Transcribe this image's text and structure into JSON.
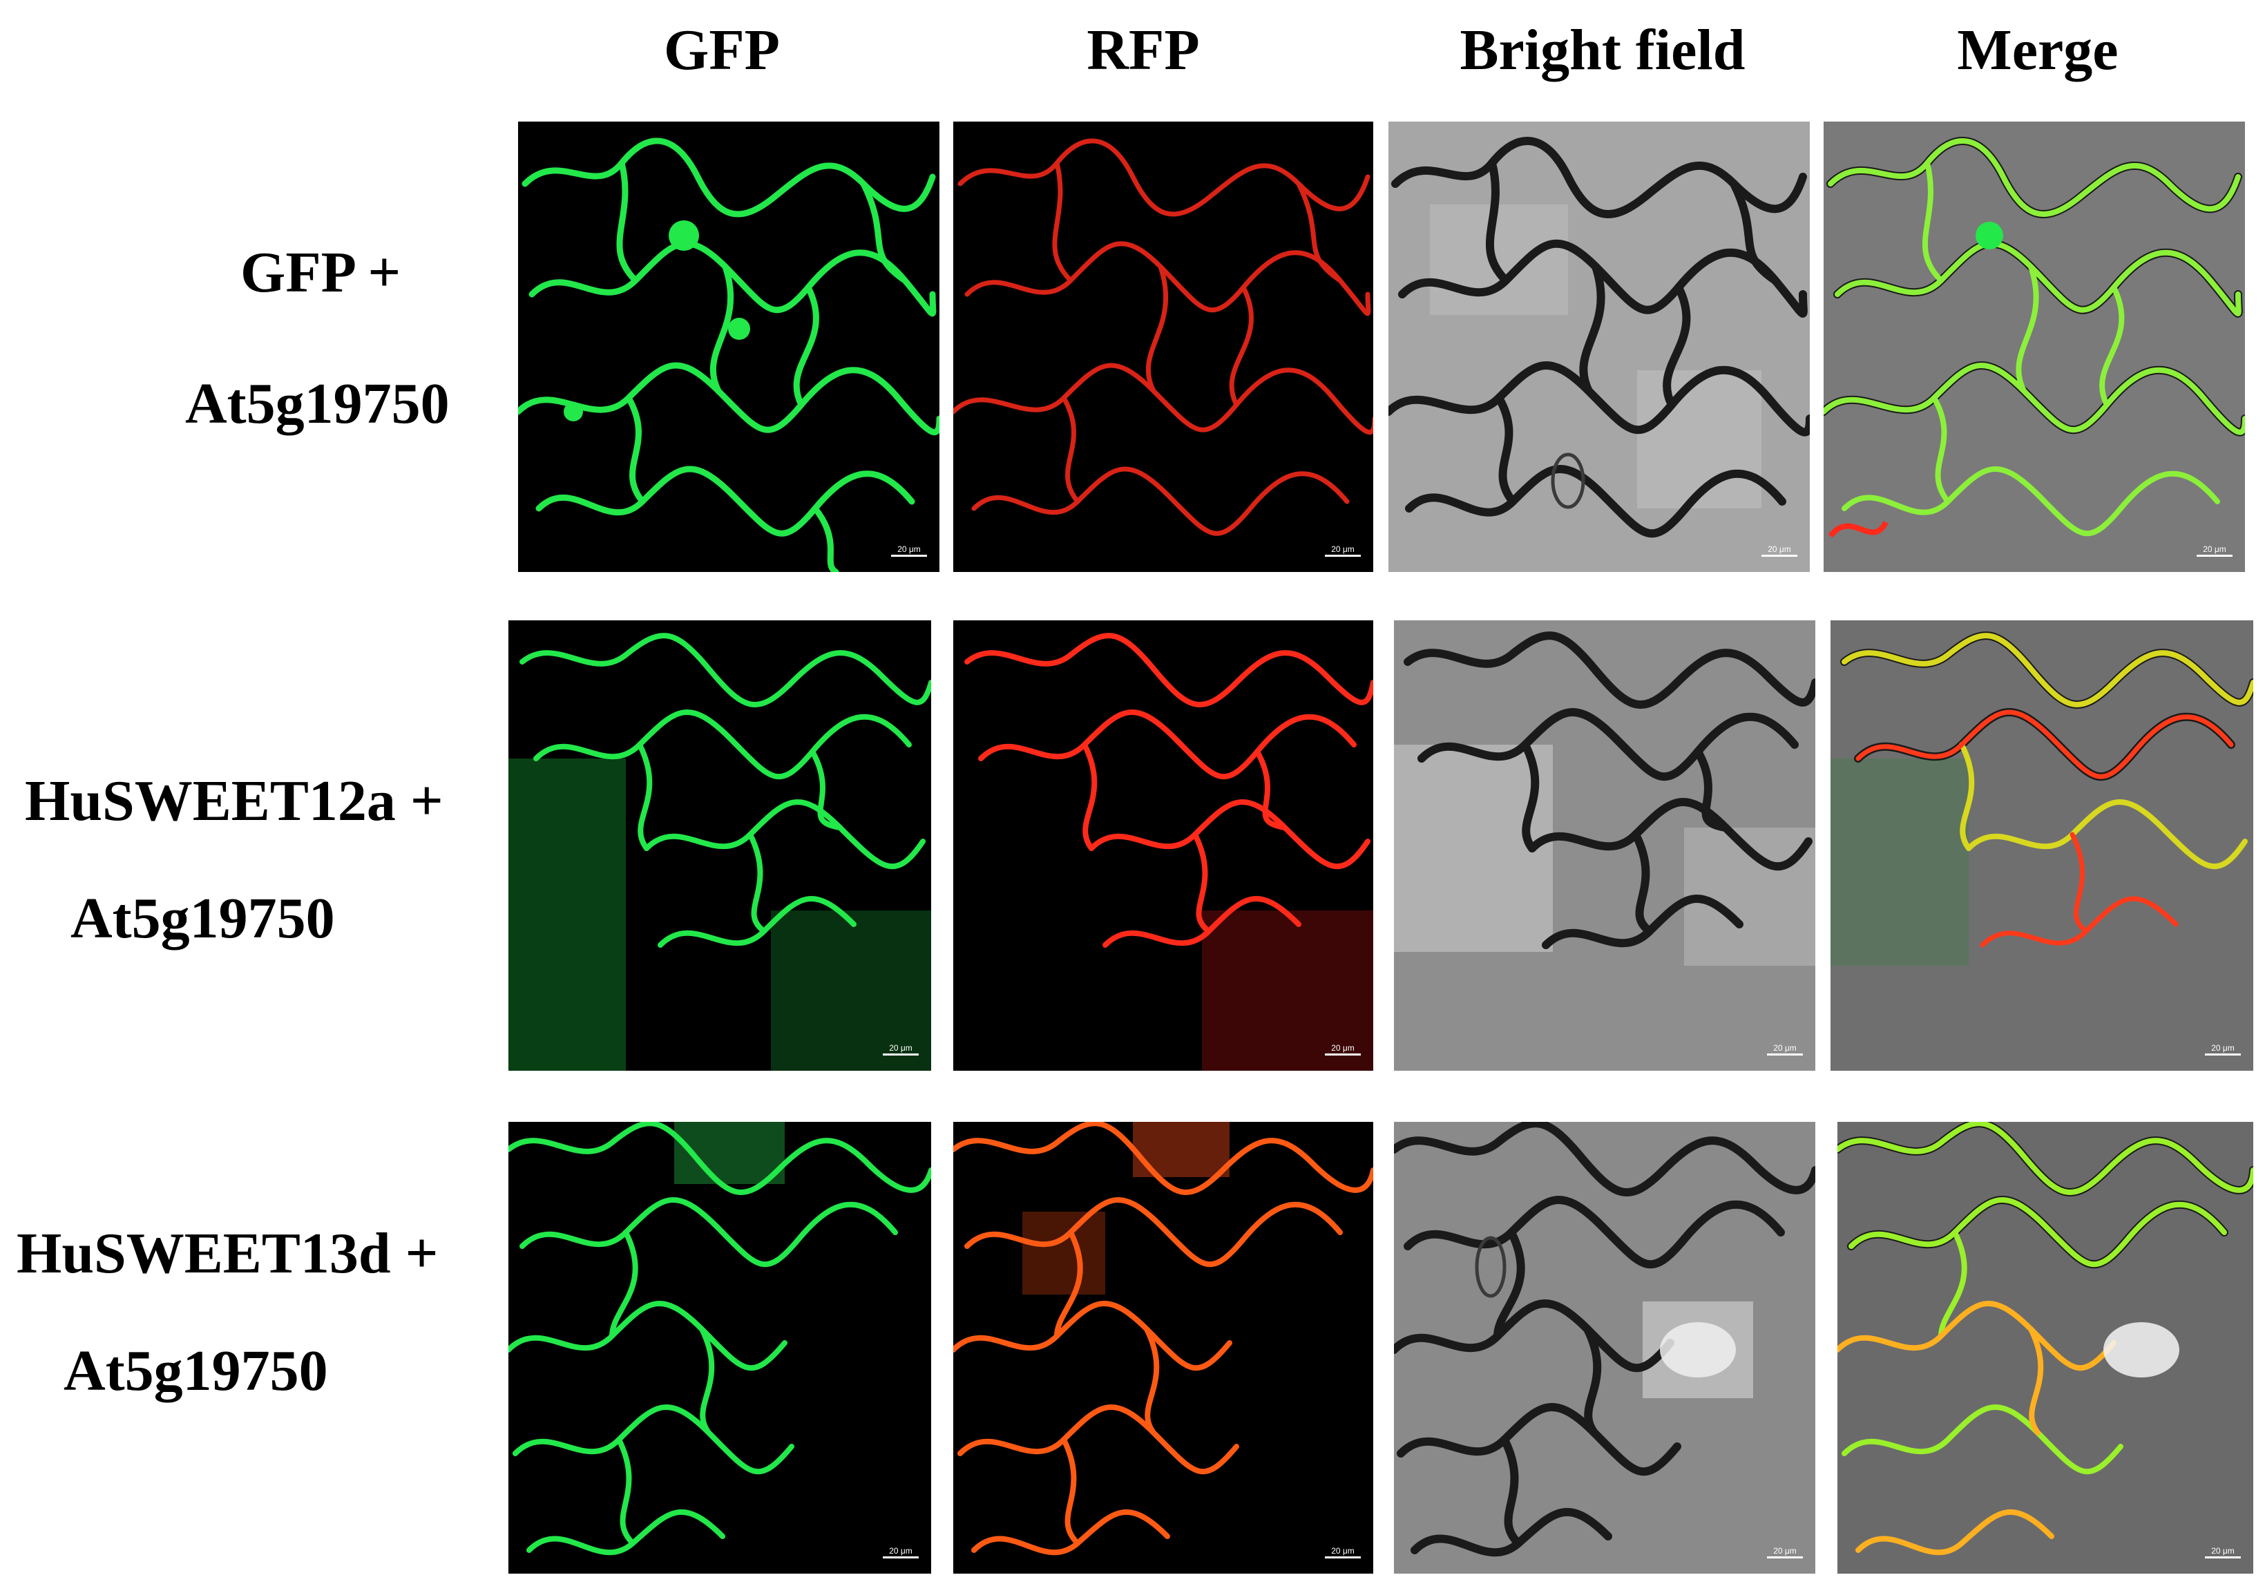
{
  "columns": {
    "gfp": "GFP",
    "rfp": "RFP",
    "bright": "Bright field",
    "merge": "Merge"
  },
  "rows": [
    {
      "line1": "GFP +",
      "line2": "At5g19750"
    },
    {
      "line1": "HuSWEET12a +",
      "line2": "At5g19750"
    },
    {
      "line1": "HuSWEET13d +",
      "line2": "At5g19750"
    }
  ],
  "scale_bar_label": "20 μm",
  "channel_colors": {
    "gfp": "#22e84a",
    "rfp": "#ff2a1a",
    "rfp_row3": "#ff5a14",
    "bright_bg": "#9a9a9a",
    "bright_wall": "#1a1a1a"
  }
}
